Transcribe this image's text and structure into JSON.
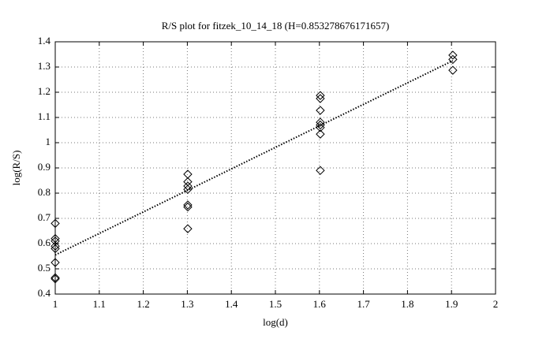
{
  "chart_data": {
    "type": "scatter",
    "title": "R/S plot for fitzek_10_14_18 (H=0.853278676171657)",
    "x_label": "log(d)",
    "y_label": "log(R/S)",
    "xlim": [
      1,
      2
    ],
    "ylim": [
      0.4,
      1.4
    ],
    "xticks": [
      1,
      1.1,
      1.2,
      1.3,
      1.4,
      1.5,
      1.6,
      1.7,
      1.8,
      1.9,
      2
    ],
    "yticks": [
      0.4,
      0.5,
      0.6,
      0.7,
      0.8,
      0.9,
      1,
      1.1,
      1.2,
      1.3,
      1.4
    ],
    "grid": true,
    "series": [
      {
        "type": "scatter",
        "marker": "diamond",
        "color": "#000000",
        "x": [
          1,
          1,
          1,
          1,
          1,
          1,
          1,
          1,
          1.301,
          1.301,
          1.301,
          1.301,
          1.301,
          1.301,
          1.301,
          1.602,
          1.602,
          1.602,
          1.602,
          1.602,
          1.602,
          1.602,
          1.602,
          1.903,
          1.903,
          1.903
        ],
        "values": [
          0.68,
          0.62,
          0.61,
          0.59,
          0.58,
          0.525,
          0.465,
          0.46,
          0.875,
          0.845,
          0.828,
          0.815,
          0.753,
          0.745,
          0.659,
          1.187,
          1.175,
          1.128,
          1.081,
          1.07,
          1.06,
          1.034,
          0.89,
          1.347,
          1.33,
          1.287
        ]
      },
      {
        "type": "line",
        "line_style": "dotted",
        "color": "#000000",
        "x": [
          1,
          1.903
        ],
        "values": [
          0.555,
          1.325
        ]
      }
    ]
  }
}
